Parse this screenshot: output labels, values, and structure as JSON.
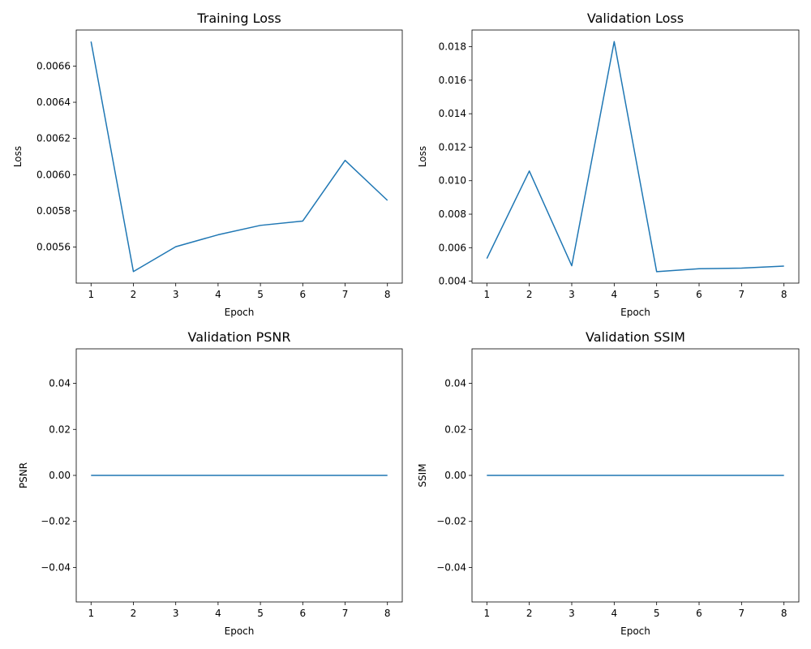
{
  "chart_data": [
    {
      "type": "line",
      "title": "Training Loss",
      "xlabel": "Epoch",
      "ylabel": "Loss",
      "x": [
        1,
        2,
        3,
        4,
        5,
        6,
        7,
        8
      ],
      "series": [
        {
          "values": [
            0.006735,
            0.005465,
            0.005602,
            0.005668,
            0.00572,
            0.005744,
            0.006079,
            0.005858
          ]
        }
      ],
      "xlim": [
        0.65,
        8.35
      ],
      "ylim": [
        0.005401,
        0.006799
      ],
      "xticks": [
        "1",
        "2",
        "3",
        "4",
        "5",
        "6",
        "7",
        "8"
      ],
      "yticks": [
        {
          "value": 0.0056,
          "label": "0.0056"
        },
        {
          "value": 0.0058,
          "label": "0.0058"
        },
        {
          "value": 0.006,
          "label": "0.0060"
        },
        {
          "value": 0.0062,
          "label": "0.0062"
        },
        {
          "value": 0.0064,
          "label": "0.0064"
        },
        {
          "value": 0.0066,
          "label": "0.0066"
        }
      ],
      "color": "#1f77b4",
      "grid": false
    },
    {
      "type": "line",
      "title": "Validation Loss",
      "xlabel": "Epoch",
      "ylabel": "Loss",
      "x": [
        1,
        2,
        3,
        4,
        5,
        6,
        7,
        8
      ],
      "series": [
        {
          "values": [
            0.00535,
            0.01058,
            0.00492,
            0.01831,
            0.00457,
            0.00474,
            0.00478,
            0.0049
          ]
        }
      ],
      "xlim": [
        0.65,
        8.35
      ],
      "ylim": [
        0.003883,
        0.018999
      ],
      "xticks": [
        "1",
        "2",
        "3",
        "4",
        "5",
        "6",
        "7",
        "8"
      ],
      "yticks": [
        {
          "value": 0.004,
          "label": "0.004"
        },
        {
          "value": 0.006,
          "label": "0.006"
        },
        {
          "value": 0.008,
          "label": "0.008"
        },
        {
          "value": 0.01,
          "label": "0.010"
        },
        {
          "value": 0.012,
          "label": "0.012"
        },
        {
          "value": 0.014,
          "label": "0.014"
        },
        {
          "value": 0.016,
          "label": "0.016"
        },
        {
          "value": 0.018,
          "label": "0.018"
        }
      ],
      "color": "#1f77b4",
      "grid": false
    },
    {
      "type": "line",
      "title": "Validation PSNR",
      "xlabel": "Epoch",
      "ylabel": "PSNR",
      "x": [
        1,
        2,
        3,
        4,
        5,
        6,
        7,
        8
      ],
      "series": [
        {
          "values": [
            0,
            0,
            0,
            0,
            0,
            0,
            0,
            0
          ]
        }
      ],
      "xlim": [
        0.65,
        8.35
      ],
      "ylim": [
        -0.055,
        0.055
      ],
      "xticks": [
        "1",
        "2",
        "3",
        "4",
        "5",
        "6",
        "7",
        "8"
      ],
      "yticks": [
        {
          "value": -0.04,
          "label": "−0.04"
        },
        {
          "value": -0.02,
          "label": "−0.02"
        },
        {
          "value": 0.0,
          "label": "0.00"
        },
        {
          "value": 0.02,
          "label": "0.02"
        },
        {
          "value": 0.04,
          "label": "0.04"
        }
      ],
      "color": "#1f77b4",
      "grid": false
    },
    {
      "type": "line",
      "title": "Validation SSIM",
      "xlabel": "Epoch",
      "ylabel": "SSIM",
      "x": [
        1,
        2,
        3,
        4,
        5,
        6,
        7,
        8
      ],
      "series": [
        {
          "values": [
            0,
            0,
            0,
            0,
            0,
            0,
            0,
            0
          ]
        }
      ],
      "xlim": [
        0.65,
        8.35
      ],
      "ylim": [
        -0.055,
        0.055
      ],
      "xticks": [
        "1",
        "2",
        "3",
        "4",
        "5",
        "6",
        "7",
        "8"
      ],
      "yticks": [
        {
          "value": -0.04,
          "label": "−0.04"
        },
        {
          "value": -0.02,
          "label": "−0.02"
        },
        {
          "value": 0.0,
          "label": "0.00"
        },
        {
          "value": 0.02,
          "label": "0.02"
        },
        {
          "value": 0.04,
          "label": "0.04"
        }
      ],
      "color": "#1f77b4",
      "grid": false
    }
  ]
}
